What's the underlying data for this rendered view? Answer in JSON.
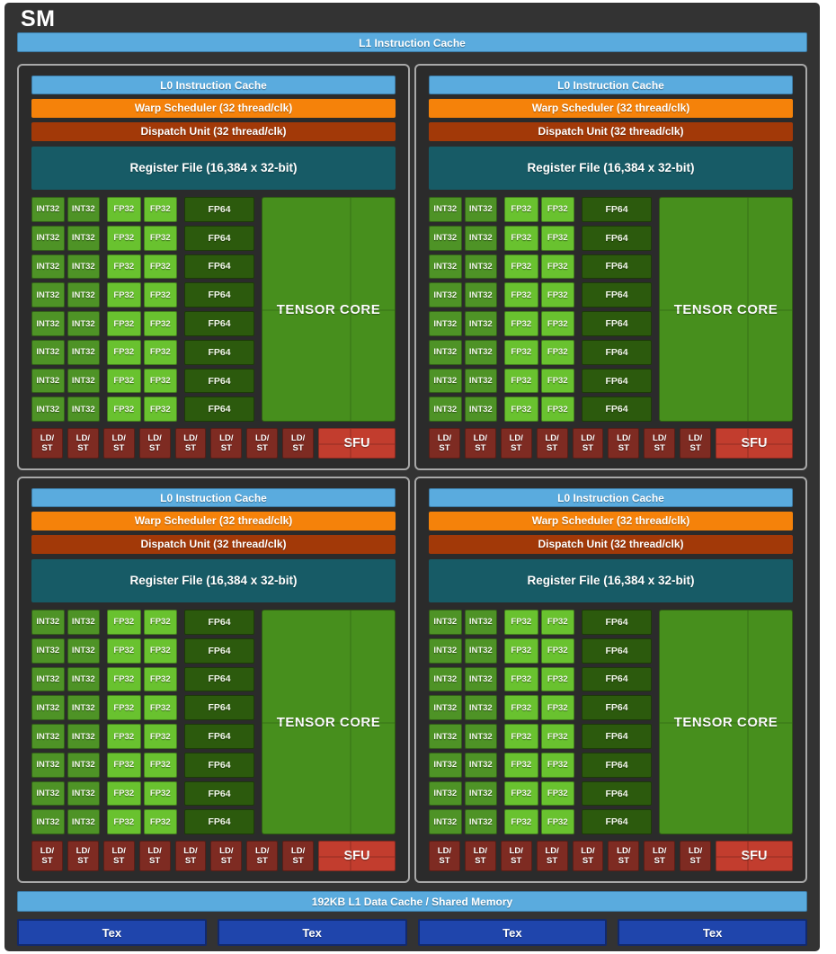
{
  "sm": {
    "title": "SM",
    "l1_instruction_cache": "L1 Instruction Cache",
    "partition_count": 4,
    "partition": {
      "l0_cache": "L0 Instruction Cache",
      "warp_scheduler": "Warp Scheduler (32 thread/clk)",
      "dispatch_unit": "Dispatch Unit (32 thread/clk)",
      "register_file": "Register File (16,384 x 32-bit)",
      "core_rows": 8,
      "core_columns": {
        "int32": 2,
        "fp32": 2,
        "fp64": 1
      },
      "int32_label": "INT32",
      "fp32_label": "FP32",
      "fp64_label": "FP64",
      "tensor_core_label": "TENSOR CORE",
      "ldst_count": 8,
      "ldst_label": "LD/\nST",
      "sfu_label": "SFU"
    },
    "l1_data_cache": "192KB L1 Data Cache / Shared Memory",
    "tex_count": 4,
    "tex_label": "Tex",
    "colors": {
      "frame_bg": "#333333",
      "partition_bg": "#2b2b2b",
      "partition_border": "#a8a8a8",
      "light_blue": "#5aabde",
      "orange": "#f5820a",
      "brick": "#a23908",
      "teal": "#175b66",
      "int32_green": "#4e9326",
      "fp32_green": "#69c22f",
      "fp64_green": "#2c5a0d",
      "tensor_green": "#478f1d",
      "ldst_red": "#7e2b22",
      "sfu_red": "#c23d2e",
      "tex_blue": "#1f45ac",
      "text": "#ffffff"
    }
  }
}
